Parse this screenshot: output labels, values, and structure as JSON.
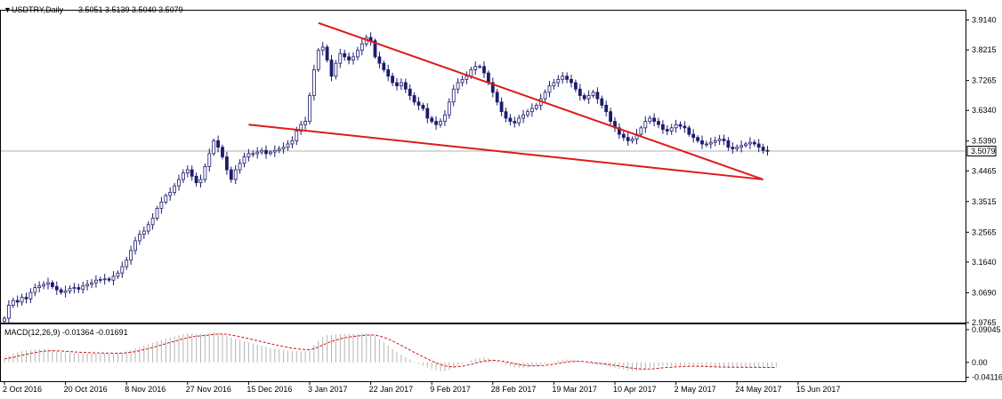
{
  "header": {
    "symbol": "USDTRY,Daily",
    "ohlc": "3.5051 3.5139 3.5040 3.5079"
  },
  "macd_header": "MACD(12,26,9) -0.01364 -0.01691",
  "current_price_label": "3.5079",
  "colors": {
    "candle": "#1c1c6e",
    "trendline": "#e01a1a",
    "signal": "#d01010",
    "histogram": "#b4b4b4",
    "hline": "#b0b0b0",
    "price_box_border": "#000000"
  },
  "chart_data": {
    "type": "candlestick",
    "price_axis": {
      "ticks": [
        "3.9140",
        "3.8215",
        "3.7265",
        "3.6340",
        "3.5390",
        "3.4465",
        "3.3515",
        "3.2565",
        "3.1640",
        "3.0690",
        "2.9765"
      ],
      "range": [
        2.9765,
        3.943
      ]
    },
    "macd_axis": {
      "ticks": [
        "0.09045",
        "0.00",
        "-0.04116"
      ],
      "range": [
        -0.052,
        0.105
      ]
    },
    "x_labels": [
      "2 Oct 2016",
      "20 Oct 2016",
      "8 Nov 2016",
      "27 Nov 2016",
      "15 Dec 2016",
      "3 Jan 2017",
      "22 Jan 2017",
      "9 Feb 2017",
      "28 Feb 2017",
      "19 Mar 2017",
      "10 Apr 2017",
      "2 May 2017",
      "24 May 2017",
      "15 Jun 2017"
    ],
    "bars_per_label": 14,
    "closes": [
      2.99,
      3.03,
      3.045,
      3.04,
      3.055,
      3.05,
      3.07,
      3.085,
      3.09,
      3.095,
      3.1,
      3.088,
      3.078,
      3.07,
      3.075,
      3.082,
      3.085,
      3.08,
      3.09,
      3.095,
      3.1,
      3.108,
      3.11,
      3.112,
      3.108,
      3.12,
      3.13,
      3.15,
      3.17,
      3.2,
      3.23,
      3.25,
      3.26,
      3.28,
      3.3,
      3.33,
      3.35,
      3.37,
      3.38,
      3.4,
      3.42,
      3.44,
      3.45,
      3.43,
      3.41,
      3.42,
      3.46,
      3.5,
      3.54,
      3.52,
      3.49,
      3.45,
      3.42,
      3.45,
      3.47,
      3.49,
      3.5,
      3.5,
      3.505,
      3.51,
      3.5,
      3.505,
      3.51,
      3.515,
      3.52,
      3.53,
      3.54,
      3.57,
      3.59,
      3.6,
      3.68,
      3.76,
      3.82,
      3.83,
      3.79,
      3.74,
      3.78,
      3.81,
      3.8,
      3.79,
      3.8,
      3.82,
      3.84,
      3.86,
      3.85,
      3.8,
      3.78,
      3.76,
      3.74,
      3.72,
      3.71,
      3.72,
      3.7,
      3.68,
      3.66,
      3.65,
      3.64,
      3.61,
      3.6,
      3.59,
      3.6,
      3.62,
      3.66,
      3.7,
      3.72,
      3.73,
      3.74,
      3.76,
      3.77,
      3.77,
      3.75,
      3.72,
      3.69,
      3.66,
      3.63,
      3.61,
      3.6,
      3.595,
      3.61,
      3.62,
      3.63,
      3.64,
      3.65,
      3.67,
      3.69,
      3.71,
      3.72,
      3.73,
      3.74,
      3.73,
      3.72,
      3.7,
      3.68,
      3.67,
      3.68,
      3.69,
      3.67,
      3.65,
      3.63,
      3.6,
      3.58,
      3.56,
      3.55,
      3.54,
      3.545,
      3.56,
      3.58,
      3.6,
      3.61,
      3.6,
      3.59,
      3.575,
      3.57,
      3.58,
      3.59,
      3.585,
      3.58,
      3.56,
      3.55,
      3.54,
      3.53,
      3.53,
      3.535,
      3.54,
      3.545,
      3.54,
      3.52,
      3.515,
      3.52,
      3.525,
      3.53,
      3.535,
      3.53,
      3.52,
      3.51,
      3.508
    ],
    "macd_histogram": [
      0.01,
      0.018,
      0.024,
      0.028,
      0.031,
      0.033,
      0.035,
      0.036,
      0.037,
      0.037,
      0.036,
      0.034,
      0.031,
      0.029,
      0.028,
      0.027,
      0.026,
      0.025,
      0.025,
      0.025,
      0.025,
      0.025,
      0.025,
      0.025,
      0.024,
      0.024,
      0.025,
      0.027,
      0.03,
      0.034,
      0.038,
      0.042,
      0.046,
      0.05,
      0.054,
      0.058,
      0.062,
      0.066,
      0.069,
      0.072,
      0.075,
      0.078,
      0.08,
      0.08,
      0.079,
      0.078,
      0.079,
      0.081,
      0.083,
      0.082,
      0.079,
      0.074,
      0.068,
      0.064,
      0.061,
      0.058,
      0.055,
      0.052,
      0.049,
      0.046,
      0.043,
      0.04,
      0.038,
      0.036,
      0.034,
      0.032,
      0.031,
      0.031,
      0.031,
      0.031,
      0.036,
      0.048,
      0.06,
      0.07,
      0.075,
      0.076,
      0.077,
      0.078,
      0.079,
      0.079,
      0.078,
      0.078,
      0.079,
      0.08,
      0.078,
      0.072,
      0.064,
      0.055,
      0.046,
      0.037,
      0.029,
      0.022,
      0.015,
      0.008,
      0.002,
      -0.004,
      -0.009,
      -0.014,
      -0.018,
      -0.022,
      -0.024,
      -0.024,
      -0.021,
      -0.016,
      -0.01,
      -0.004,
      0.001,
      0.006,
      0.01,
      0.013,
      0.014,
      0.012,
      0.008,
      0.003,
      -0.002,
      -0.007,
      -0.011,
      -0.014,
      -0.015,
      -0.015,
      -0.014,
      -0.012,
      -0.01,
      -0.007,
      -0.004,
      -0.001,
      0.002,
      0.005,
      0.007,
      0.008,
      0.008,
      0.006,
      0.003,
      -0.001,
      -0.004,
      -0.006,
      -0.008,
      -0.009,
      -0.011,
      -0.013,
      -0.015,
      -0.018,
      -0.02,
      -0.022,
      -0.023,
      -0.023,
      -0.022,
      -0.02,
      -0.017,
      -0.014,
      -0.011,
      -0.01,
      -0.01,
      -0.01,
      -0.01,
      -0.009,
      -0.009,
      -0.009,
      -0.01,
      -0.011,
      -0.012,
      -0.013,
      -0.014,
      -0.014,
      -0.014,
      -0.014,
      -0.014,
      -0.014,
      -0.014,
      -0.014,
      -0.014,
      -0.014,
      -0.014,
      -0.014,
      -0.014,
      -0.014,
      -0.014,
      -0.014
    ],
    "trendlines": [
      {
        "from": {
          "bar": 72,
          "price": 3.905
        },
        "to": {
          "bar": 174,
          "price": 3.42
        }
      },
      {
        "from": {
          "bar": 56,
          "price": 3.59
        },
        "to": {
          "bar": 174,
          "price": 3.42
        }
      }
    ],
    "current_price": 3.5079
  }
}
